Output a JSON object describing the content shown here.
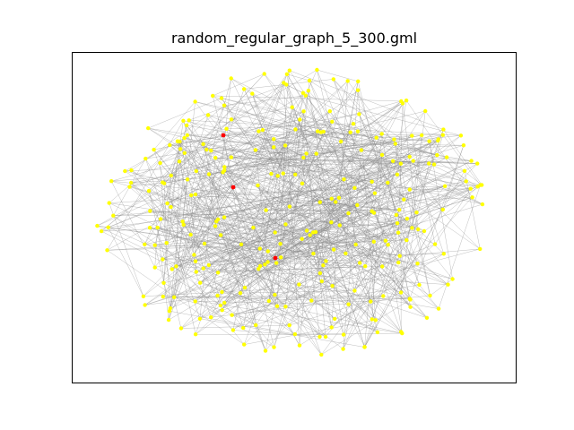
{
  "figure": {
    "title": "random_regular_graph_5_300.gml"
  },
  "graph": {
    "node_count": 300,
    "degree": 5,
    "highlighted_node_count": 3,
    "colors": {
      "node": "#ffff00",
      "highlight": "#ff0000",
      "edge": "#888888",
      "frame": "#000000",
      "background": "#ffffff"
    }
  }
}
